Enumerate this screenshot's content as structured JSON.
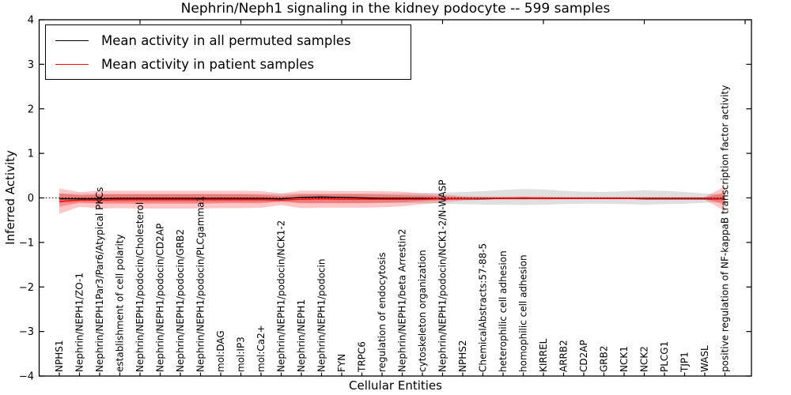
{
  "legend": {
    "position": "upper left",
    "items": [
      {
        "label": "Mean activity in all permuted samples",
        "color": "#000000"
      },
      {
        "label": "Mean activity in patient samples",
        "color": "#ff0000"
      }
    ]
  },
  "chart_data": {
    "type": "line",
    "title": "Nephrin/Neph1 signaling in the kidney podocyte -- 599 samples",
    "xlabel": "Cellular Entities",
    "ylabel": "Inferred Activity",
    "ylim": [
      -4,
      4
    ],
    "grid": false,
    "legend_position": "upper left",
    "yticks": [
      {
        "v": -4,
        "label": "−4"
      },
      {
        "v": -3,
        "label": "−3"
      },
      {
        "v": -2,
        "label": "−2"
      },
      {
        "v": -1,
        "label": "−1"
      },
      {
        "v": 0,
        "label": "0"
      },
      {
        "v": 1,
        "label": "1"
      },
      {
        "v": 2,
        "label": "2"
      },
      {
        "v": 3,
        "label": "3"
      },
      {
        "v": 4,
        "label": "4"
      }
    ],
    "xticks_top": [
      5,
      10,
      15,
      20,
      25,
      30,
      35
    ],
    "categories": [
      "NPHS1",
      "Nephrin/NEPH1/ZO-1",
      "Nephrin/NEPH1Par3/Par6/Atypical PKCs",
      "establishment of cell polarity",
      "Nephrin/NEPH1/podocin/Cholesterol",
      "Nephrin/NEPH1/podocin/CD2AP",
      "Nephrin/NEPH1/podocin/GRB2",
      "Nephrin/NEPH1/podocin/PLCgamma1",
      "mol:DAG",
      "mol:IP3",
      "mol:Ca2+",
      "Nephrin/NEPH1/podocin/NCK1-2",
      "Nephrin/NEPH1",
      "Nephrin/NEPH1/podocin",
      "FYN",
      "TRPC6",
      "regulation of endocytosis",
      "Nephrin/NEPH1/beta Arrestin2",
      "cytoskeleton organization",
      "Nephrin/NEPH1/podocin/NCK1-2/N-WASP",
      "NPHS2",
      "ChemicalAbstracts:57-88-5",
      "heterophilic cell adhesion",
      "homophilic cell adhesion",
      "KIRREL",
      "ARRB2",
      "CD2AP",
      "GRB2",
      "NCK1",
      "NCK2",
      "PLCG1",
      "TJP1",
      "WASL",
      "positive regulation of NF-kappaB transcription factor activity"
    ],
    "zero_line": {
      "value": 0,
      "style": "dotted",
      "color": "#000000"
    },
    "series": [
      {
        "name": "Mean activity in all permuted samples",
        "color": "#000000",
        "values": [
          -0.02,
          -0.02,
          -0.02,
          -0.01,
          -0.01,
          -0.01,
          -0.01,
          -0.01,
          -0.01,
          -0.01,
          -0.01,
          -0.02,
          0.01,
          0.02,
          0.01,
          0.0,
          -0.01,
          -0.01,
          -0.01,
          -0.02,
          -0.02,
          -0.02,
          -0.01,
          -0.01,
          -0.01,
          -0.01,
          -0.01,
          -0.01,
          -0.01,
          -0.02,
          -0.02,
          -0.02,
          -0.02,
          -0.02
        ]
      },
      {
        "name": "Mean activity in patient samples",
        "color": "#ff0000",
        "values": [
          -0.08,
          -0.05,
          -0.05,
          -0.04,
          -0.04,
          -0.04,
          -0.04,
          -0.04,
          -0.04,
          -0.04,
          -0.04,
          -0.05,
          -0.03,
          -0.02,
          -0.03,
          -0.03,
          -0.03,
          -0.03,
          -0.03,
          -0.02,
          -0.02,
          -0.01,
          -0.01,
          0.0,
          -0.01,
          -0.01,
          -0.01,
          -0.01,
          -0.01,
          -0.01,
          -0.01,
          -0.01,
          -0.01,
          -0.02
        ]
      }
    ],
    "bands": [
      {
        "name": "permuted-std-band",
        "color": "#808080",
        "opacity": 0.25,
        "upper": [
          0.1,
          0.09,
          0.09,
          0.09,
          0.09,
          0.09,
          0.09,
          0.09,
          0.09,
          0.09,
          0.09,
          0.09,
          0.1,
          0.1,
          0.1,
          0.1,
          0.1,
          0.1,
          0.11,
          0.12,
          0.13,
          0.15,
          0.18,
          0.2,
          0.19,
          0.16,
          0.14,
          0.13,
          0.15,
          0.17,
          0.16,
          0.13,
          0.1,
          0.08
        ],
        "lower": [
          -0.12,
          -0.1,
          -0.1,
          -0.1,
          -0.1,
          -0.1,
          -0.1,
          -0.1,
          -0.1,
          -0.1,
          -0.1,
          -0.1,
          -0.11,
          -0.11,
          -0.11,
          -0.11,
          -0.11,
          -0.11,
          -0.12,
          -0.13,
          -0.14,
          -0.15,
          -0.15,
          -0.16,
          -0.15,
          -0.14,
          -0.13,
          -0.13,
          -0.14,
          -0.15,
          -0.14,
          -0.13,
          -0.11,
          -0.09
        ]
      },
      {
        "name": "patient-std-band-outer",
        "color": "#ff0000",
        "opacity": 0.22,
        "upper": [
          0.21,
          0.13,
          0.16,
          0.16,
          0.16,
          0.16,
          0.16,
          0.16,
          0.16,
          0.16,
          0.15,
          0.1,
          0.16,
          0.16,
          0.15,
          0.15,
          0.15,
          0.14,
          0.1,
          0.08,
          0.04,
          0.03,
          0.03,
          0.03,
          0.03,
          0.02,
          0.02,
          0.02,
          0.02,
          0.02,
          0.02,
          0.02,
          0.02,
          0.26
        ],
        "lower": [
          -0.36,
          -0.2,
          -0.24,
          -0.23,
          -0.24,
          -0.24,
          -0.24,
          -0.24,
          -0.23,
          -0.23,
          -0.22,
          -0.16,
          -0.23,
          -0.22,
          -0.22,
          -0.22,
          -0.21,
          -0.19,
          -0.14,
          -0.1,
          -0.06,
          -0.04,
          -0.04,
          -0.04,
          -0.04,
          -0.03,
          -0.03,
          -0.03,
          -0.03,
          -0.03,
          -0.03,
          -0.03,
          -0.04,
          -0.3
        ]
      },
      {
        "name": "patient-std-band-inner",
        "color": "#ff0000",
        "opacity": 0.28,
        "upper": [
          0.1,
          0.06,
          0.08,
          0.08,
          0.08,
          0.08,
          0.08,
          0.08,
          0.08,
          0.08,
          0.07,
          0.04,
          0.08,
          0.08,
          0.08,
          0.08,
          0.07,
          0.06,
          0.05,
          0.04,
          0.02,
          0.01,
          0.01,
          0.01,
          0.01,
          0.01,
          0.01,
          0.01,
          0.01,
          0.01,
          0.01,
          0.01,
          0.01,
          0.12
        ],
        "lower": [
          -0.2,
          -0.11,
          -0.13,
          -0.13,
          -0.13,
          -0.13,
          -0.13,
          -0.13,
          -0.12,
          -0.12,
          -0.12,
          -0.08,
          -0.12,
          -0.12,
          -0.12,
          -0.12,
          -0.11,
          -0.1,
          -0.07,
          -0.05,
          -0.03,
          -0.02,
          -0.02,
          -0.02,
          -0.02,
          -0.02,
          -0.02,
          -0.02,
          -0.02,
          -0.02,
          -0.02,
          -0.02,
          -0.02,
          -0.15
        ]
      }
    ]
  }
}
